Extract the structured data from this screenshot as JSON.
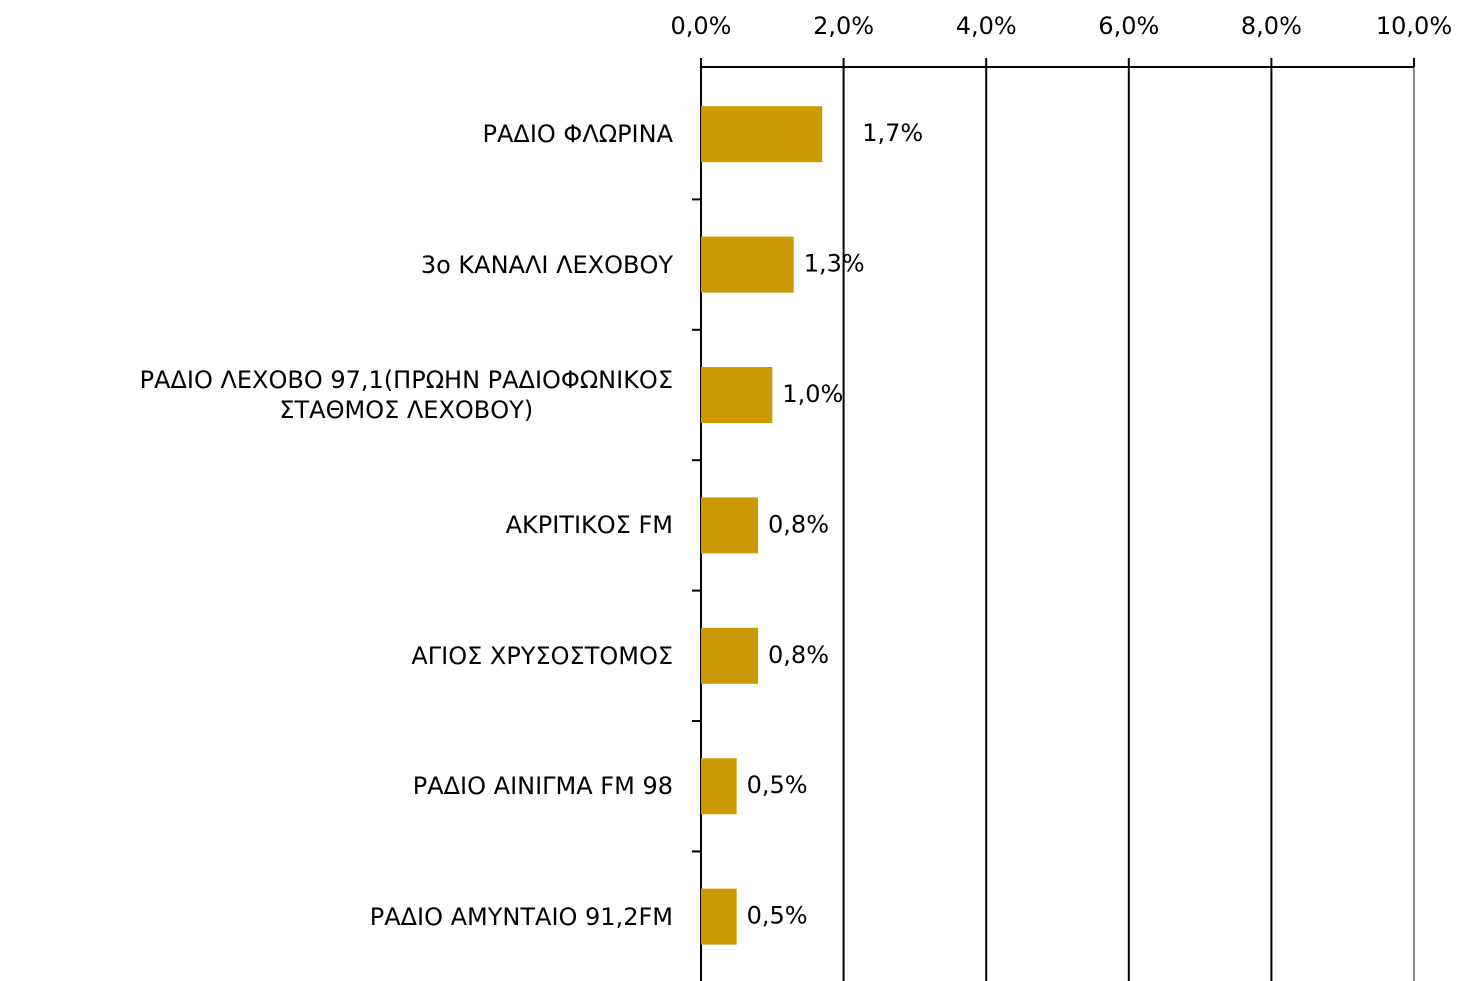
{
  "chart_data": {
    "type": "barh",
    "categories": [
      "ΡΑΔΙΟ ΦΛΩΡΙΝΑ",
      "3ο ΚΑΝΑΛΙ ΛΕΧΟΒΟΥ",
      "ΡΑΔΙΟ ΛΕΧΟΒΟ 97,1(ΠΡΩΗΝ ΡΑΔΙΟΦΩΝΙΚΟΣ\nΣΤΑΘΜΟΣ ΛΕΧΟΒΟΥ)",
      "ΑΚΡΙΤΙΚΟΣ FM",
      "ΑΓΙΟΣ ΧΡΥΣΟΣΤΟΜΟΣ",
      "ΡΑΔΙΟ ΑΙΝΙΓΜΑ FM 98",
      "ΡΑΔΙΟ ΑΜΥΝΤΑΙΟ 91,2FM"
    ],
    "values": [
      1.7,
      1.3,
      1.0,
      0.8,
      0.8,
      0.5,
      0.5
    ],
    "value_labels": [
      "1,7%",
      "1,3%",
      "1,0%",
      "0,8%",
      "0,8%",
      "0,5%",
      "0,5%"
    ],
    "color": "#cc9900",
    "xlim": [
      0,
      10
    ],
    "xticks": [
      {
        "value": 0,
        "label": "0,0%"
      },
      {
        "value": 2,
        "label": "2,0%"
      },
      {
        "value": 4,
        "label": "4,0%"
      },
      {
        "value": 6,
        "label": "6,0%"
      },
      {
        "value": 8,
        "label": "8,0%"
      },
      {
        "value": 10,
        "label": "10,0%"
      }
    ],
    "grid": true
  }
}
